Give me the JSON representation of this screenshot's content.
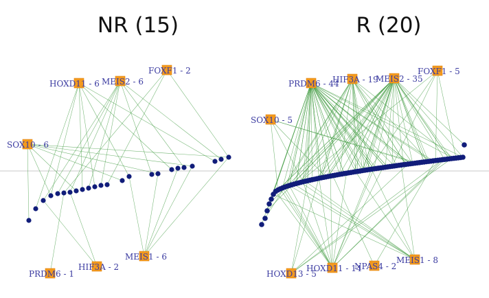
{
  "panels": [
    {
      "title": "NR (15)",
      "hubs": [
        {
          "label": "HOXD11 - 6",
          "mutation_count": 6
        },
        {
          "label": "MEIS2 - 6",
          "mutation_count": 6
        },
        {
          "label": "FOXF1 - 2",
          "mutation_count": 2
        },
        {
          "label": "SOX10 - 6",
          "mutation_count": 6
        },
        {
          "label": "PRDM6 - 1",
          "mutation_count": 1
        },
        {
          "label": "HIF3A - 2",
          "mutation_count": 2
        },
        {
          "label": "MEIS1 - 6",
          "mutation_count": 6
        }
      ],
      "sample_count": 24
    },
    {
      "title": "R (20)",
      "hubs": [
        {
          "label": "PRDM6 - 44",
          "mutation_count": 44
        },
        {
          "label": "HIF3A - 19",
          "mutation_count": 19
        },
        {
          "label": "MEIS2 - 35",
          "mutation_count": 35
        },
        {
          "label": "FOXF1 - 5",
          "mutation_count": 5
        },
        {
          "label": "SOX10 - 5",
          "mutation_count": 5
        },
        {
          "label": "HOXD13 - 5",
          "mutation_count": 5
        },
        {
          "label": "HOXD11 - 14",
          "mutation_count": 14
        },
        {
          "label": "NPAS4 - 2",
          "mutation_count": 2
        },
        {
          "label": "MEIS1 - 8",
          "mutation_count": 8
        }
      ],
      "sample_count": 90
    }
  ],
  "colors": {
    "hub_fill": "#f39a1e",
    "hub_label": "#3a3aa0",
    "edge": "#3f9a3f",
    "sample_node": "#111d7a"
  }
}
